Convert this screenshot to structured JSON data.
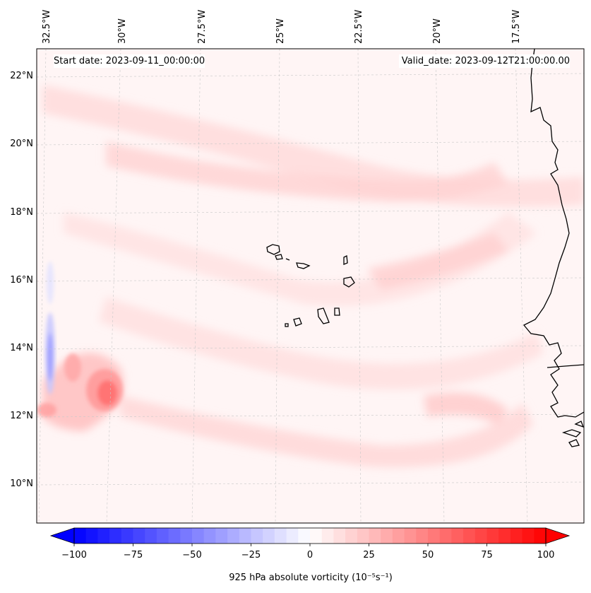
{
  "map": {
    "start_date": "Start date: 2023-09-11_00:00:00",
    "valid_date": "Valid_date: 2023-09-12T21:00:00.00",
    "lon_labels": [
      "32.5°W",
      "30°W",
      "27.5°W",
      "25°W",
      "22.5°W",
      "20°W",
      "17.5°W"
    ],
    "lat_labels": [
      "22°N",
      "20°N",
      "18°N",
      "16°N",
      "14°N",
      "12°N",
      "10°N"
    ],
    "field": "925 hPa absolute vorticity",
    "colors": {
      "negative": "#0000ff",
      "neutral": "#ffffff",
      "positive": "#ff0000",
      "coast": "#000000",
      "grid": "#c8c8c8"
    }
  },
  "colorbar": {
    "label": "925 hPa absolute vorticity (10⁻⁵s⁻¹)",
    "ticks": [
      "−100",
      "−75",
      "−50",
      "−25",
      "0",
      "25",
      "50",
      "75",
      "100"
    ],
    "range": [
      -100,
      100
    ],
    "colormap": "bwr"
  }
}
